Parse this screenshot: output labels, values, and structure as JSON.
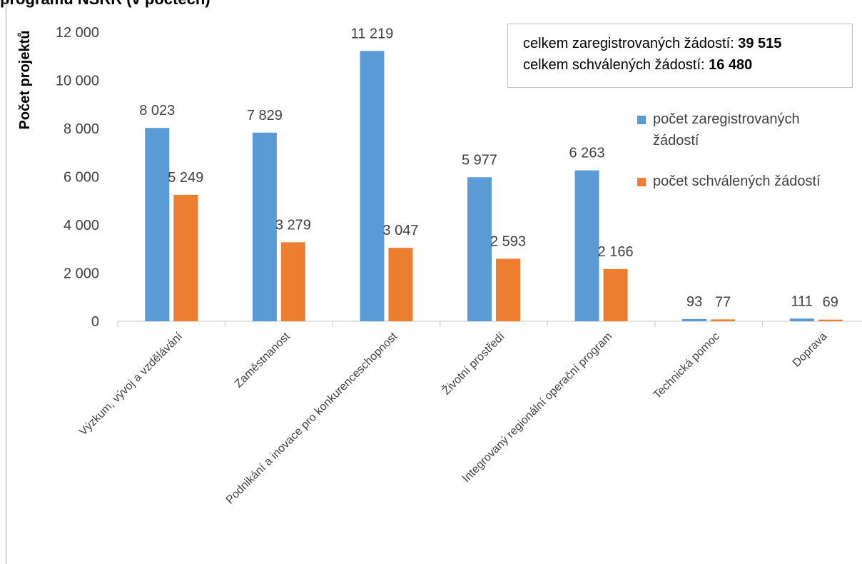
{
  "title": "programů NSRR (v počtech)",
  "summary": {
    "line1_label": "celkem zaregistrovaných žádostí: ",
    "line1_value": "39 515",
    "line2_label": "celkem schválených žádostí: ",
    "line2_value": "16 480"
  },
  "colors": {
    "registered": "#5b9bd5",
    "approved": "#ed7d31",
    "axis": "#d9d9d9",
    "text": "#404040"
  },
  "chart_data": {
    "type": "bar",
    "ylabel": "Počet projektů",
    "xlabel": "",
    "ylim": [
      0,
      12000
    ],
    "yticks": [
      0,
      2000,
      4000,
      6000,
      8000,
      10000,
      12000
    ],
    "ytick_labels": [
      "0",
      "2 000",
      "4 000",
      "6 000",
      "8 000",
      "10 000",
      "12 000"
    ],
    "grid": false,
    "legend_position": "right",
    "categories": [
      "Výzkum, vývoj a vzdělávání",
      "Zaměstnanost",
      "Podnikání a inovace pro konkurenceschopnost",
      "Životní prostředí",
      "Integrovaný regionální operační program",
      "Technická pomoc",
      "Doprava"
    ],
    "series": [
      {
        "name": "počet zaregistrovaných žádostí",
        "legend_lines": [
          "počet zaregistrovaných",
          "žádostí"
        ],
        "values": [
          8023,
          7829,
          11219,
          5977,
          6263,
          93,
          111
        ],
        "labels": [
          "8 023",
          "7 829",
          "11 219",
          "5 977",
          "6 263",
          "93",
          "111"
        ]
      },
      {
        "name": "počet schválených žádostí",
        "legend_lines": [
          "počet schválených žádostí"
        ],
        "values": [
          5249,
          3279,
          3047,
          2593,
          2166,
          77,
          69
        ],
        "labels": [
          "5 249",
          "3 279",
          "3 047",
          "2 593",
          "2 166",
          "77",
          "69"
        ]
      }
    ]
  }
}
